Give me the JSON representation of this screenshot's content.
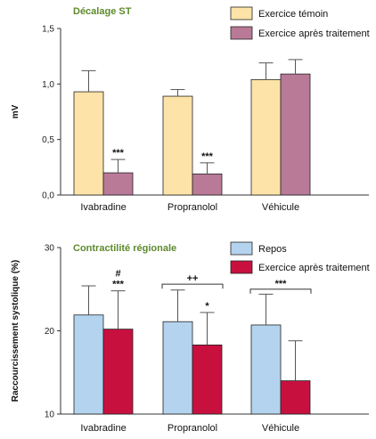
{
  "chart_data": [
    {
      "type": "bar",
      "title": "Décalage ST",
      "ylabel": "mV",
      "ylim": [
        0,
        1.5
      ],
      "yticks": [
        "0,0",
        "0,5",
        "1,0",
        "1,5"
      ],
      "ytick_values": [
        0,
        0.5,
        1.0,
        1.5
      ],
      "categories": [
        "Ivabradine",
        "Propranolol",
        "Véhicule"
      ],
      "legend_position": "top-right",
      "series": [
        {
          "name": "Exercice témoin",
          "color": "#fde3a7",
          "values": [
            0.93,
            0.89,
            1.04
          ],
          "errors": [
            0.19,
            0.06,
            0.15
          ]
        },
        {
          "name": "Exercice après traitement",
          "color": "#b97a97",
          "values": [
            0.2,
            0.19,
            1.09
          ],
          "errors": [
            0.12,
            0.1,
            0.13
          ]
        }
      ],
      "annotations": [
        {
          "category": 0,
          "series": 1,
          "text": "***"
        },
        {
          "category": 1,
          "series": 1,
          "text": "***"
        }
      ],
      "brackets": []
    },
    {
      "type": "bar",
      "title": "Contractilité régionale",
      "ylabel": "Raccourcissement systolique (%)",
      "ylim": [
        10,
        30
      ],
      "yticks": [
        "10",
        "20",
        "30"
      ],
      "ytick_values": [
        10,
        20,
        30
      ],
      "categories": [
        "Ivabradine",
        "Propranolol",
        "Véhicule"
      ],
      "legend_position": "top-right",
      "series": [
        {
          "name": "Repos",
          "color": "#b4d3ee",
          "values": [
            21.9,
            21.1,
            20.7
          ],
          "errors": [
            3.5,
            3.8,
            3.7
          ]
        },
        {
          "name": "Exercice après traitement",
          "color": "#c8103f",
          "values": [
            20.2,
            18.3,
            14.0
          ],
          "errors": [
            4.6,
            3.9,
            4.8
          ]
        }
      ],
      "annotations": [
        {
          "category": 0,
          "series": 1,
          "text": "#",
          "level": 2
        },
        {
          "category": 0,
          "series": 1,
          "text": "***",
          "level": 1
        },
        {
          "category": 1,
          "series": 1,
          "text": "*",
          "level": 1
        }
      ],
      "brackets": [
        {
          "category": 1,
          "y": 25.6,
          "text": "++"
        },
        {
          "category": 2,
          "y": 25.0,
          "text": "***"
        }
      ]
    }
  ]
}
